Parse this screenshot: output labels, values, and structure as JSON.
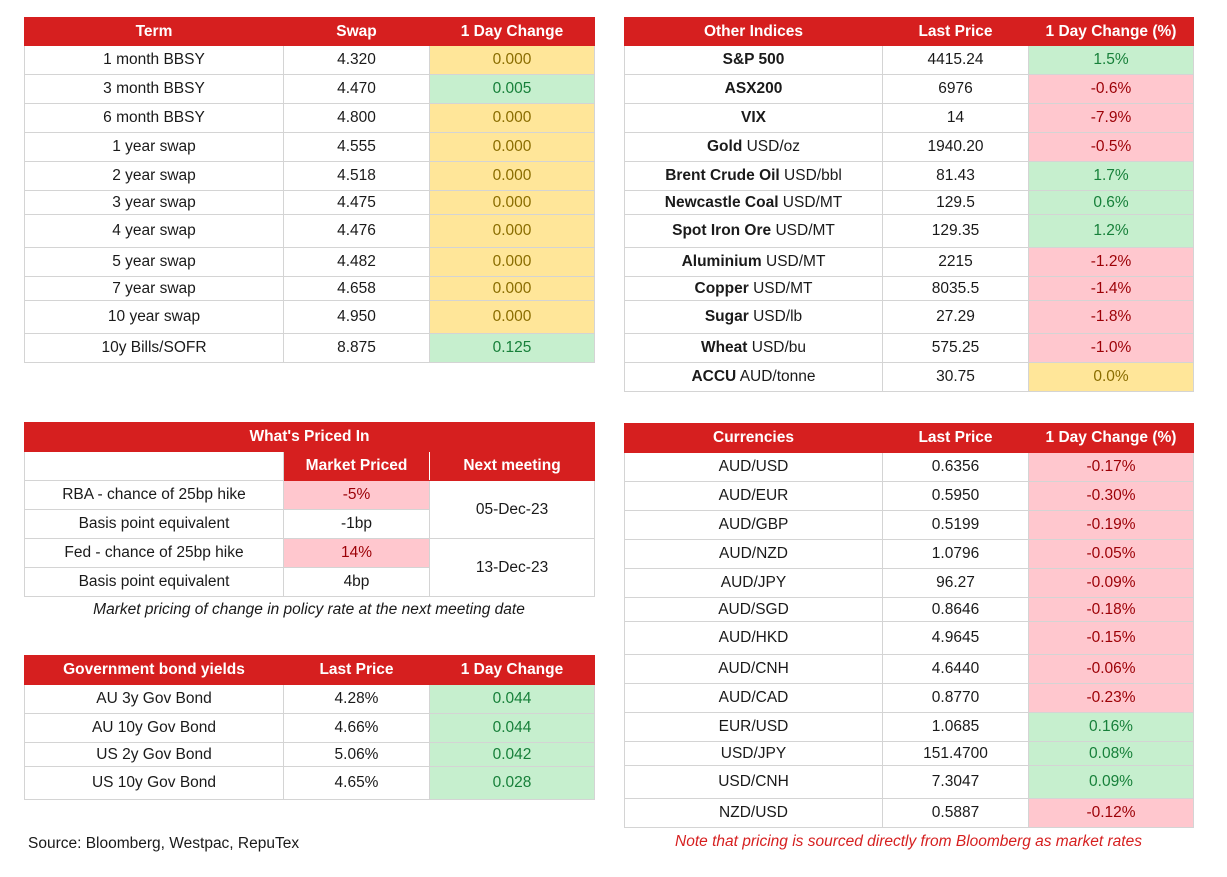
{
  "swaps": {
    "headers": [
      "Term",
      "Swap",
      "1 Day Change"
    ],
    "rows": [
      {
        "term": "1 month BBSY",
        "swap": "4.320",
        "change": "0.000",
        "status": "neutral"
      },
      {
        "term": "3 month BBSY",
        "swap": "4.470",
        "change": "0.005",
        "status": "up"
      },
      {
        "term": "6 month BBSY",
        "swap": "4.800",
        "change": "0.000",
        "status": "neutral"
      },
      {
        "term": "1 year swap",
        "swap": "4.555",
        "change": "0.000",
        "status": "neutral"
      },
      {
        "term": "2 year swap",
        "swap": "4.518",
        "change": "0.000",
        "status": "neutral"
      },
      {
        "term": "3 year swap",
        "swap": "4.475",
        "change": "0.000",
        "status": "neutral"
      },
      {
        "term": "4 year swap",
        "swap": "4.476",
        "change": "0.000",
        "status": "neutral"
      },
      {
        "term": "5 year swap",
        "swap": "4.482",
        "change": "0.000",
        "status": "neutral"
      },
      {
        "term": "7 year swap",
        "swap": "4.658",
        "change": "0.000",
        "status": "neutral"
      },
      {
        "term": "10 year swap",
        "swap": "4.950",
        "change": "0.000",
        "status": "neutral"
      },
      {
        "term": "10y Bills/SOFR",
        "swap": "8.875",
        "change": "0.125",
        "status": "up"
      }
    ]
  },
  "indices": {
    "headers": [
      "Other Indices",
      "Last Price",
      "1 Day Change (%)"
    ],
    "rows": [
      {
        "name": "S&P 500",
        "unit": "",
        "price": "4415.24",
        "change": "1.5%",
        "status": "up"
      },
      {
        "name": "ASX200",
        "unit": "",
        "price": "6976",
        "change": "-0.6%",
        "status": "down"
      },
      {
        "name": "VIX",
        "unit": "",
        "price": "14",
        "change": "-7.9%",
        "status": "down"
      },
      {
        "name": "Gold",
        "unit": " USD/oz",
        "price": "1940.20",
        "change": "-0.5%",
        "status": "down"
      },
      {
        "name": "Brent Crude Oil",
        "unit": " USD/bbl",
        "price": "81.43",
        "change": "1.7%",
        "status": "up"
      },
      {
        "name": "Newcastle Coal",
        "unit": " USD/MT",
        "price": "129.5",
        "change": "0.6%",
        "status": "up"
      },
      {
        "name": "Spot Iron Ore",
        "unit": " USD/MT",
        "price": "129.35",
        "change": "1.2%",
        "status": "up"
      },
      {
        "name": "Aluminium",
        "unit": " USD/MT",
        "price": "2215",
        "change": "-1.2%",
        "status": "down"
      },
      {
        "name": "Copper",
        "unit": " USD/MT",
        "price": "8035.5",
        "change": "-1.4%",
        "status": "down"
      },
      {
        "name": "Sugar",
        "unit": " USD/lb",
        "price": "27.29",
        "change": "-1.8%",
        "status": "down"
      },
      {
        "name": "Wheat",
        "unit": " USD/bu",
        "price": "575.25",
        "change": "-1.0%",
        "status": "down"
      },
      {
        "name": "ACCU",
        "unit": " AUD/tonne",
        "price": "30.75",
        "change": "0.0%",
        "status": "neutral"
      }
    ]
  },
  "priced": {
    "title": "What's Priced In",
    "subheaders": [
      "Market Priced",
      "Next meeting"
    ],
    "rows": [
      {
        "label": "RBA - chance of 25bp hike",
        "value": "-5%",
        "status": "down"
      },
      {
        "label": "Basis point equivalent",
        "value": "-1bp",
        "status": "plain"
      },
      {
        "label": "Fed - chance of 25bp hike",
        "value": "14%",
        "status": "down"
      },
      {
        "label": "Basis point equivalent",
        "value": "4bp",
        "status": "plain"
      }
    ],
    "meetings": [
      "05-Dec-23",
      "13-Dec-23"
    ],
    "footnote": "Market pricing of change in policy rate at the next meeting date"
  },
  "bonds": {
    "headers": [
      "Government bond yields",
      "Last Price",
      "1 Day Change"
    ],
    "rows": [
      {
        "name": "AU 3y Gov Bond",
        "price": "4.28%",
        "change": "0.044",
        "status": "up"
      },
      {
        "name": "AU 10y Gov Bond",
        "price": "4.66%",
        "change": "0.044",
        "status": "up"
      },
      {
        "name": "US 2y Gov Bond",
        "price": "5.06%",
        "change": "0.042",
        "status": "up"
      },
      {
        "name": "US 10y Gov Bond",
        "price": "4.65%",
        "change": "0.028",
        "status": "up"
      }
    ]
  },
  "currencies": {
    "headers": [
      "Currencies",
      "Last Price",
      "1 Day Change (%)"
    ],
    "rows": [
      {
        "pair": "AUD/USD",
        "price": "0.6356",
        "change": "-0.17%",
        "status": "down"
      },
      {
        "pair": "AUD/EUR",
        "price": "0.5950",
        "change": "-0.30%",
        "status": "down"
      },
      {
        "pair": "AUD/GBP",
        "price": "0.5199",
        "change": "-0.19%",
        "status": "down"
      },
      {
        "pair": "AUD/NZD",
        "price": "1.0796",
        "change": "-0.05%",
        "status": "down"
      },
      {
        "pair": "AUD/JPY",
        "price": "96.27",
        "change": "-0.09%",
        "status": "down"
      },
      {
        "pair": "AUD/SGD",
        "price": "0.8646",
        "change": "-0.18%",
        "status": "down"
      },
      {
        "pair": "AUD/HKD",
        "price": "4.9645",
        "change": "-0.15%",
        "status": "down"
      },
      {
        "pair": "AUD/CNH",
        "price": "4.6440",
        "change": "-0.06%",
        "status": "down"
      },
      {
        "pair": "AUD/CAD",
        "price": "0.8770",
        "change": "-0.23%",
        "status": "down"
      },
      {
        "pair": "EUR/USD",
        "price": "1.0685",
        "change": "0.16%",
        "status": "up"
      },
      {
        "pair": "USD/JPY",
        "price": "151.4700",
        "change": "0.08%",
        "status": "up"
      },
      {
        "pair": "USD/CNH",
        "price": "7.3047",
        "change": "0.09%",
        "status": "up"
      },
      {
        "pair": "NZD/USD",
        "price": "0.5887",
        "change": "-0.12%",
        "status": "down"
      }
    ]
  },
  "footer": {
    "source": "Source: Bloomberg, Westpac, RepuTex",
    "note": "Note that pricing is sourced directly from Bloomberg as market rates"
  },
  "colors": {
    "header_red": "#d61f1f",
    "up_fill": "#c6efce",
    "down_fill": "#ffc7ce",
    "neutral_fill": "#ffe699"
  }
}
